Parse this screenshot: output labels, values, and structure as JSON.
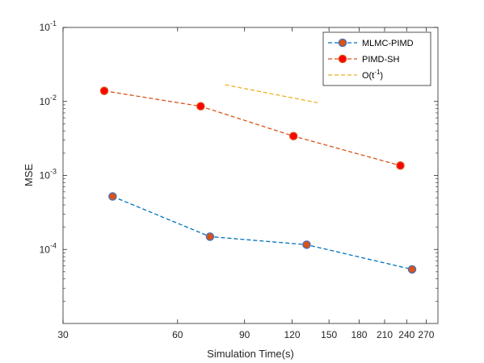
{
  "chart_data": {
    "type": "line",
    "xlabel": "Simulation Time(s)",
    "ylabel": "MSE",
    "xscale": "log",
    "yscale": "log",
    "xlim": [
      30,
      290
    ],
    "ylim": [
      1e-05,
      0.1
    ],
    "xticks": [
      30,
      60,
      90,
      120,
      150,
      180,
      210,
      240,
      270
    ],
    "xtick_labels": [
      "30",
      "60",
      "90",
      "120",
      "150",
      "180",
      "210",
      "240",
      "270"
    ],
    "yticks": [
      0.0001,
      0.001,
      0.01,
      0.1
    ],
    "ytick_labels": [
      {
        "base": "10",
        "exp": "-4"
      },
      {
        "base": "10",
        "exp": "-3"
      },
      {
        "base": "10",
        "exp": "-2"
      },
      {
        "base": "10",
        "exp": "-1"
      }
    ],
    "grid": false,
    "legend_position": "top-right",
    "series": [
      {
        "name": "MLMC-PIMD",
        "x": [
          40.5,
          73,
          131,
          248
        ],
        "y": [
          0.00052,
          0.000149,
          0.000116,
          5.38e-05
        ],
        "line_color": "#0072BD",
        "marker": "circle",
        "marker_face": "#D95319",
        "marker_edge": "#4A6FB5",
        "dashed": true
      },
      {
        "name": "PIMD-SH",
        "x": [
          38.5,
          69,
          121,
          231
        ],
        "y": [
          0.0139,
          0.0086,
          0.0034,
          0.00136
        ],
        "line_color": "#D95319",
        "marker": "circle",
        "marker_face": "#FF0000",
        "marker_edge": "#D95319",
        "dashed": true
      },
      {
        "name": "O(t^-1)",
        "legend_label": {
          "prefix": "O(t",
          "sup": "-1",
          "suffix": ")"
        },
        "x": [
          80,
          140
        ],
        "y": [
          0.0168,
          0.0096
        ],
        "line_color": "#EDB120",
        "marker": "none",
        "dashed": true
      }
    ]
  }
}
